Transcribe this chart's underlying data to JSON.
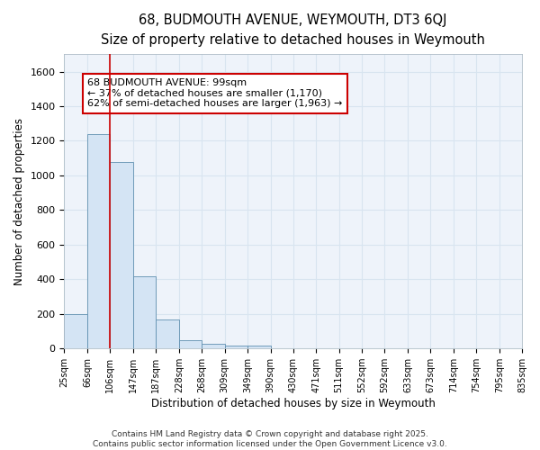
{
  "title": "68, BUDMOUTH AVENUE, WEYMOUTH, DT3 6QJ",
  "subtitle": "Size of property relative to detached houses in Weymouth",
  "xlabel": "Distribution of detached houses by size in Weymouth",
  "ylabel": "Number of detached properties",
  "bin_edges": [
    25,
    66,
    106,
    147,
    187,
    228,
    268,
    309,
    349,
    390,
    430,
    471,
    511,
    552,
    592,
    633,
    673,
    714,
    754,
    795,
    835
  ],
  "bar_heights": [
    200,
    1240,
    1080,
    415,
    170,
    50,
    25,
    15,
    15,
    0,
    0,
    0,
    0,
    0,
    0,
    0,
    0,
    0,
    0,
    0
  ],
  "bar_color": "#d4e4f4",
  "bar_edge_color": "#6090b0",
  "red_line_x": 106,
  "ylim": [
    0,
    1700
  ],
  "yticks": [
    0,
    200,
    400,
    600,
    800,
    1000,
    1200,
    1400,
    1600
  ],
  "annotation_text": "68 BUDMOUTH AVENUE: 99sqm\n← 37% of detached houses are smaller (1,170)\n62% of semi-detached houses are larger (1,963) →",
  "annotation_box_facecolor": "#ffffff",
  "annotation_box_edgecolor": "#cc0000",
  "grid_color": "#d8e4f0",
  "background_color": "#ffffff",
  "plot_bg_color": "#eef3fa",
  "footer_line1": "Contains HM Land Registry data © Crown copyright and database right 2025.",
  "footer_line2": "Contains public sector information licensed under the Open Government Licence v3.0.",
  "title_fontsize": 10.5,
  "subtitle_fontsize": 9.5,
  "tick_label_fontsize": 7,
  "axis_label_fontsize": 8.5,
  "annotation_fontsize": 8,
  "footer_fontsize": 6.5
}
